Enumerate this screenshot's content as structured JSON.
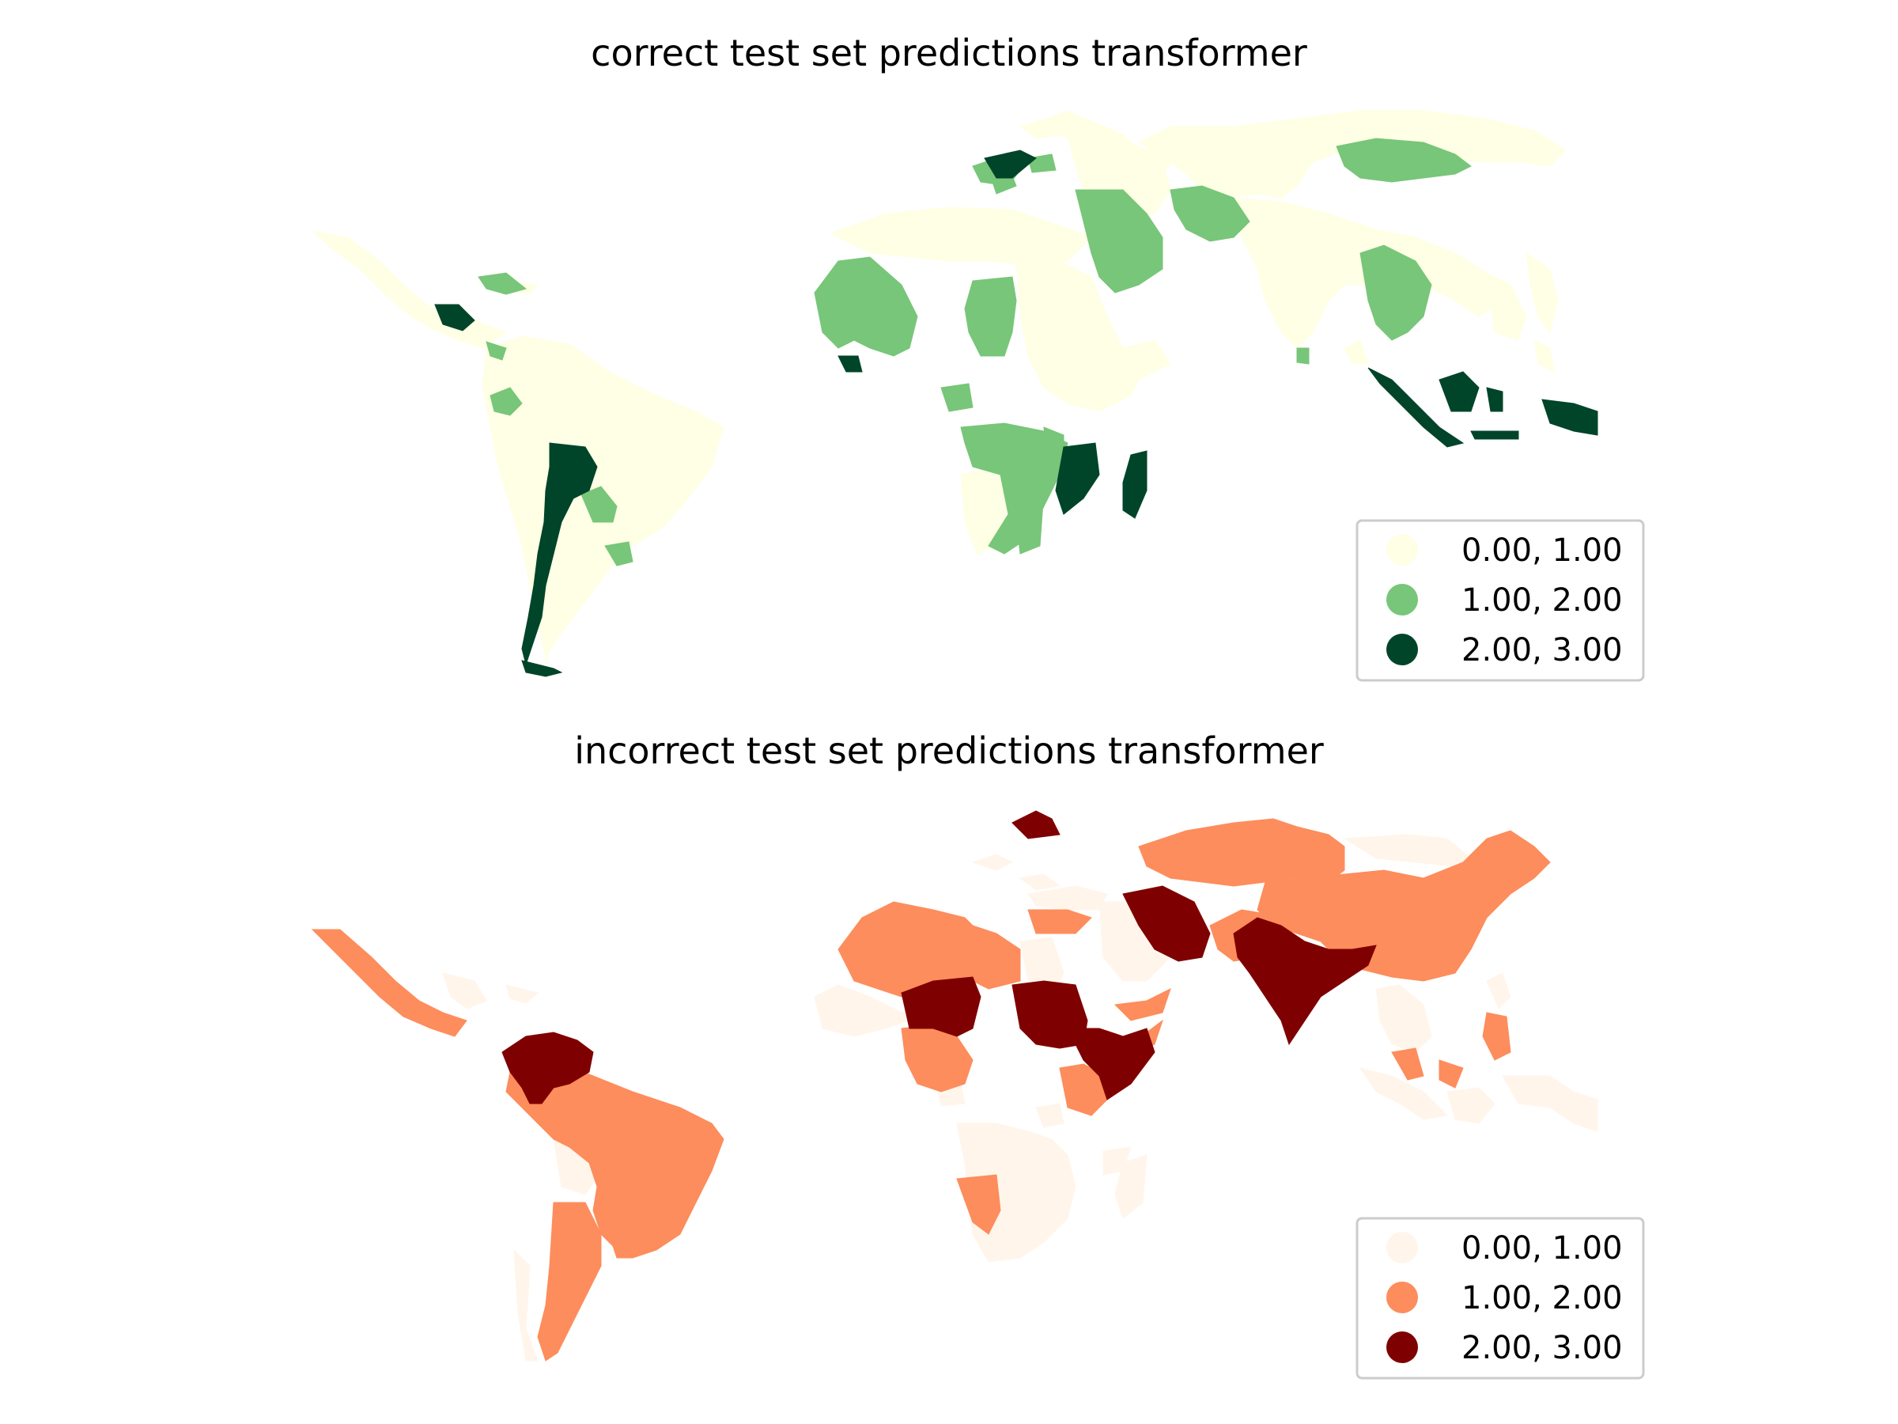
{
  "maps": [
    {
      "title": "correct test set predictions transformer",
      "legend": [
        {
          "label": "0.00, 1.00",
          "color": "#ffffe5"
        },
        {
          "label": "1.00, 2.00",
          "color": "#78c679"
        },
        {
          "label": "2.00, 3.00",
          "color": "#004529"
        }
      ]
    },
    {
      "title": "incorrect test set predictions transformer",
      "legend": [
        {
          "label": "0.00, 1.00",
          "color": "#fff5eb"
        },
        {
          "label": "1.00, 2.00",
          "color": "#fd8d5c"
        },
        {
          "label": "2.00, 3.00",
          "color": "#7f0000"
        }
      ]
    }
  ]
}
